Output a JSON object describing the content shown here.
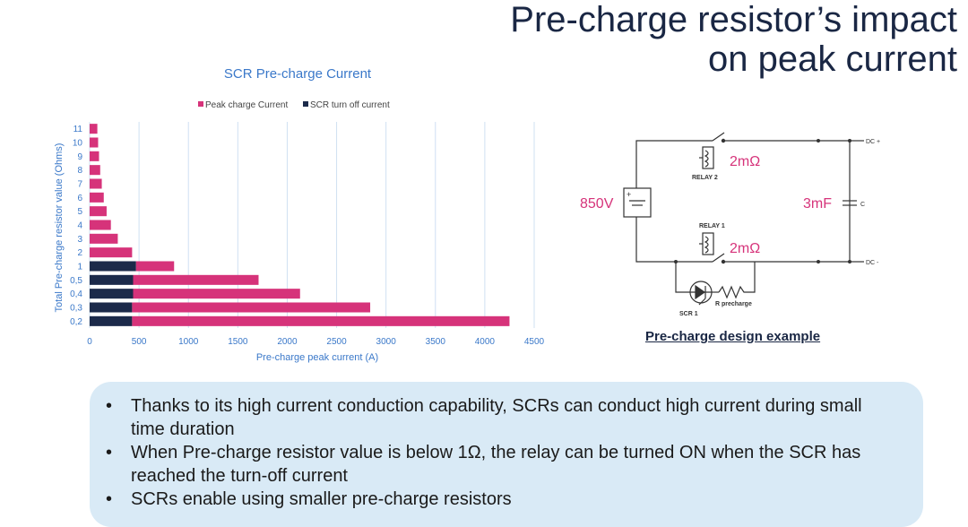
{
  "page": {
    "title_line1": "Pre-charge resistor’s impact",
    "title_line2": "on peak current"
  },
  "chart_data": {
    "type": "bar",
    "orientation": "horizontal",
    "stacked": true,
    "title": "SCR Pre-charge Current",
    "xlabel": "Pre-charge peak current (A)",
    "ylabel": "Total Pre-charge resistor value (Ohms)",
    "xlim": [
      0,
      4500
    ],
    "xticks": [
      "0",
      "500",
      "1000",
      "1500",
      "2000",
      "2500",
      "3000",
      "3500",
      "4000",
      "4500"
    ],
    "categories": [
      "0,2",
      "0,3",
      "0,4",
      "0,5",
      "1",
      "2",
      "3",
      "4",
      "5",
      "6",
      "7",
      "8",
      "9",
      "10",
      "11"
    ],
    "legend_position": "top",
    "grid": "vertical",
    "series": [
      {
        "name": "SCR turn off current",
        "color": "#1c2a4a",
        "values": [
          430,
          430,
          440,
          440,
          470,
          0,
          0,
          0,
          0,
          0,
          0,
          0,
          0,
          0,
          0
        ]
      },
      {
        "name": "Peak charge Current",
        "color": "#d6337a",
        "values": [
          3820,
          2410,
          1690,
          1270,
          385,
          430,
          285,
          215,
          172,
          143,
          123,
          107,
          95,
          86,
          78
        ]
      }
    ]
  },
  "diagram": {
    "source_label": "850V",
    "cap_label": "3mF",
    "cap_tag": "C",
    "relay2_label": "RELAY 2",
    "relay2_res": "2mΩ",
    "relay1_label": "RELAY 1",
    "relay1_res": "2mΩ",
    "dc_plus": "DC +",
    "dc_minus": "DC -",
    "scr_label": "SCR 1",
    "rpre_label": "R precharge",
    "caption": "Pre-charge design example"
  },
  "bullets": [
    "Thanks to its high current conduction capability, SCRs can conduct high current during small time duration",
    "When Pre-charge resistor value is below 1Ω, the relay can be turned ON when the SCR has reached the turn-off current",
    "SCRs enable using smaller pre-charge resistors"
  ],
  "colors": {
    "title": "#1a2744",
    "pink": "#d6337a",
    "navy": "#1c2a4a",
    "panel": "#d9eaf6",
    "annotation": "#d6337a"
  }
}
